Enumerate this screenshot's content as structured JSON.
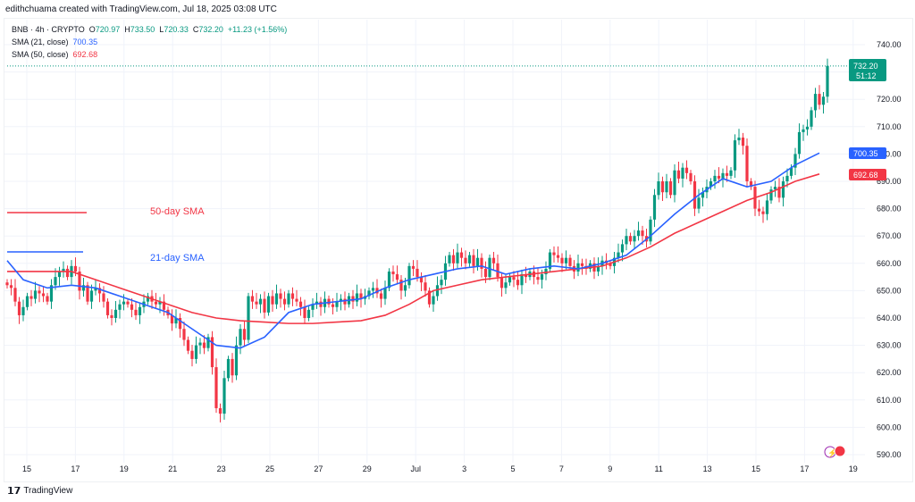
{
  "credit": "edithchuama created with TradingView.com, Jul 18, 2025 03:08 UTC",
  "legend": {
    "symbol": "BNB · 4h · CRYPTO",
    "open": "720.97",
    "high": "733.50",
    "low": "720.33",
    "close": "732.20",
    "change": "+11.23 (+1.56%)",
    "sma21_label": "SMA (21, close)",
    "sma21_value": "700.35",
    "sma50_label": "SMA (50, close)",
    "sma50_value": "692.68"
  },
  "annotations": {
    "sma50": "50-day SMA",
    "sma21": "21-day SMA"
  },
  "footer": {
    "brand": "TradingView"
  },
  "colors": {
    "up": "#089981",
    "down": "#f23645",
    "sma21": "#2962ff",
    "sma50": "#f23645"
  },
  "chart_data": {
    "type": "candlestick",
    "interval": "4h",
    "ylim": [
      590,
      740
    ],
    "yticks": [
      590,
      600,
      610,
      620,
      630,
      640,
      650,
      660,
      670,
      680,
      690,
      700,
      710,
      720,
      730,
      740
    ],
    "xtick_labels": [
      "15",
      "17",
      "19",
      "21",
      "23",
      "25",
      "27",
      "29",
      "Jul",
      "3",
      "5",
      "7",
      "9",
      "11",
      "13",
      "15",
      "17",
      "19"
    ],
    "grid": true,
    "last_price": "732.20",
    "countdown": "51:12",
    "closes": [
      652,
      651,
      646,
      641,
      644,
      648,
      647,
      650,
      649,
      648,
      646,
      652,
      655,
      657,
      658,
      655,
      659,
      657,
      650,
      652,
      646,
      650,
      651,
      649,
      646,
      641,
      640,
      643,
      645,
      646,
      645,
      643,
      641,
      644,
      646,
      648,
      646,
      645,
      646,
      643,
      641,
      638,
      640,
      636,
      632,
      628,
      625,
      630,
      631,
      629,
      633,
      622,
      607,
      605,
      618,
      625,
      619,
      630,
      636,
      632,
      648,
      646,
      645,
      647,
      642,
      648,
      645,
      649,
      647,
      645,
      649,
      647,
      646,
      644,
      640,
      643,
      645,
      646,
      644,
      647,
      645,
      644,
      646,
      647,
      645,
      648,
      646,
      649,
      647,
      648,
      650,
      651,
      649,
      647,
      651,
      657,
      656,
      654,
      650,
      652,
      659,
      658,
      655,
      653,
      650,
      645,
      648,
      652,
      654,
      660,
      663,
      660,
      664,
      662,
      660,
      663,
      659,
      662,
      658,
      655,
      662,
      660,
      655,
      651,
      653,
      655,
      654,
      652,
      656,
      655,
      657,
      655,
      654,
      656,
      658,
      664,
      663,
      662,
      660,
      662,
      659,
      657,
      660,
      659,
      658,
      660,
      657,
      659,
      661,
      660,
      659,
      662,
      664,
      667,
      670,
      668,
      670,
      672,
      670,
      668,
      676,
      685,
      690,
      686,
      690,
      685,
      694,
      691,
      695,
      693,
      690,
      680,
      684,
      686,
      688,
      690,
      692,
      691,
      693,
      692,
      694,
      705,
      706,
      703,
      690,
      688,
      680,
      679,
      678,
      683,
      687,
      688,
      684,
      690,
      692,
      695,
      700,
      708,
      709,
      710,
      716,
      722,
      718,
      720.97,
      732.2
    ],
    "sma21_daily": [
      661,
      654,
      651,
      652,
      651,
      648,
      645,
      642,
      636,
      630,
      629,
      633,
      642,
      645,
      646,
      647,
      651,
      654,
      656,
      658,
      659,
      656,
      658,
      659,
      658,
      660,
      663,
      670,
      678,
      685,
      691,
      688,
      690,
      696,
      700.35
    ],
    "sma50_daily": [
      657,
      657,
      657,
      657,
      654,
      651,
      648,
      645,
      642,
      640,
      639,
      638.5,
      638,
      638,
      638.5,
      639,
      641,
      645,
      650,
      652,
      654,
      655,
      656,
      657,
      658,
      659,
      662,
      666,
      671,
      675,
      679,
      683,
      686,
      690,
      692.68
    ]
  }
}
